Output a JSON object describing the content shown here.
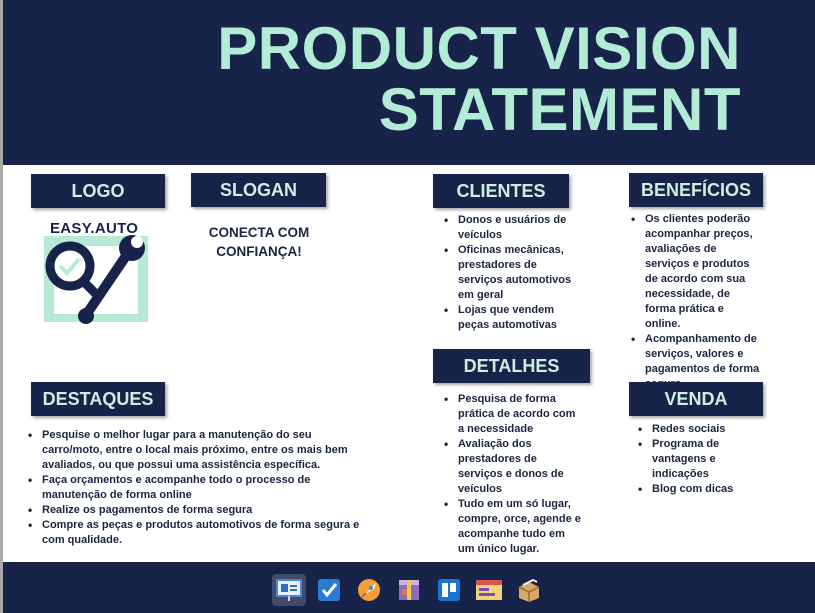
{
  "title": {
    "line1": "PRODUCT VISION",
    "line2": "STATEMENT"
  },
  "sections": {
    "logo": {
      "heading": "LOGO",
      "brand": "EASY.AUTO"
    },
    "slogan": {
      "heading": "SLOGAN",
      "text": "CONECTA COM CONFIANÇA!"
    },
    "clientes": {
      "heading": "CLIENTES",
      "items": [
        "Donos e usuários de veículos",
        "Oficinas mecânicas, prestadores de serviços automotivos em geral",
        "Lojas que vendem peças automotivas"
      ]
    },
    "beneficios": {
      "heading": "BENEFÍCIOS",
      "items": [
        "Os clientes poderão acompanhar preços, avaliações de serviços e produtos de acordo com sua necessidade, de forma prática e online.",
        "Acompanhamento de serviços, valores e pagamentos de forma segura."
      ]
    },
    "detalhes": {
      "heading": "DETALHES",
      "items": [
        "Pesquisa de forma prática de acordo com a necessidade",
        "Avaliação dos prestadores de serviços e donos de veículos",
        "Tudo em um só lugar, compre, orce, agende e acompanhe tudo em um único lugar."
      ]
    },
    "destaques": {
      "heading": "DESTAQUES",
      "items": [
        "Pesquise o melhor lugar para a manutenção do seu carro/moto, entre o local mais próximo, entre os mais bem avaliados, ou que possui uma assistência específica.",
        "Faça orçamentos e acompanhe todo o processo de manutenção de forma online",
        "Realize os pagamentos de forma segura",
        "Compre as peças e produtos automotivos de forma segura e com qualidade."
      ]
    },
    "venda": {
      "heading": "VENDA",
      "items": [
        "Redes sociais",
        "Programa de vantagens e indicações",
        "Blog com dicas"
      ]
    }
  },
  "colors": {
    "navy": "#172349",
    "mint": "#b3ecd6",
    "logo_green": "#b7ead5"
  },
  "taskbar": {
    "icons": [
      "presentation-icon",
      "checkbox-icon",
      "rocket-icon",
      "package-icon",
      "trello-icon",
      "window-icon",
      "box-icon"
    ]
  }
}
